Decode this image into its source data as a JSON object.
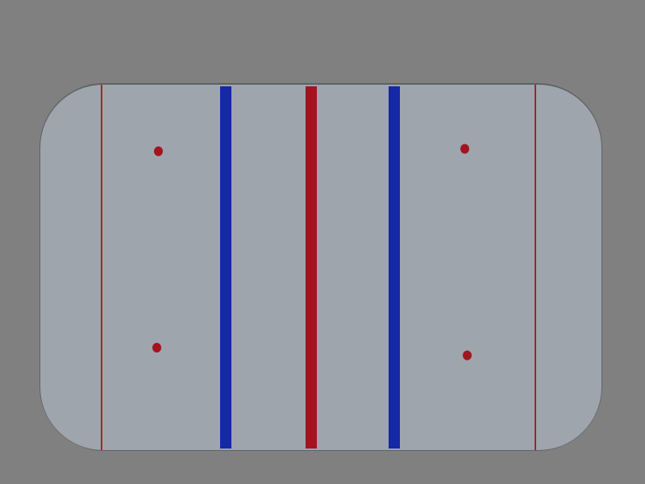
{
  "colors": {
    "background": "#808080",
    "ice": "#9ea5ad",
    "boards": "#5d6167",
    "red_line": "#a3141e",
    "blue_line": "#1428a8",
    "goal_line": "#a3242a",
    "faceoff_dot": "#a3141e"
  },
  "rink": {
    "lines": [
      {
        "name": "goal-line-left",
        "kind": "goal_line"
      },
      {
        "name": "blue-line-left",
        "kind": "blue_line"
      },
      {
        "name": "center-red-line",
        "kind": "red_line"
      },
      {
        "name": "blue-line-right",
        "kind": "blue_line"
      },
      {
        "name": "goal-line-right",
        "kind": "goal_line"
      }
    ],
    "faceoff_dots": [
      {
        "name": "faceoff-dot-top-left"
      },
      {
        "name": "faceoff-dot-bottom-left"
      },
      {
        "name": "faceoff-dot-top-right"
      },
      {
        "name": "faceoff-dot-bottom-right"
      }
    ]
  }
}
